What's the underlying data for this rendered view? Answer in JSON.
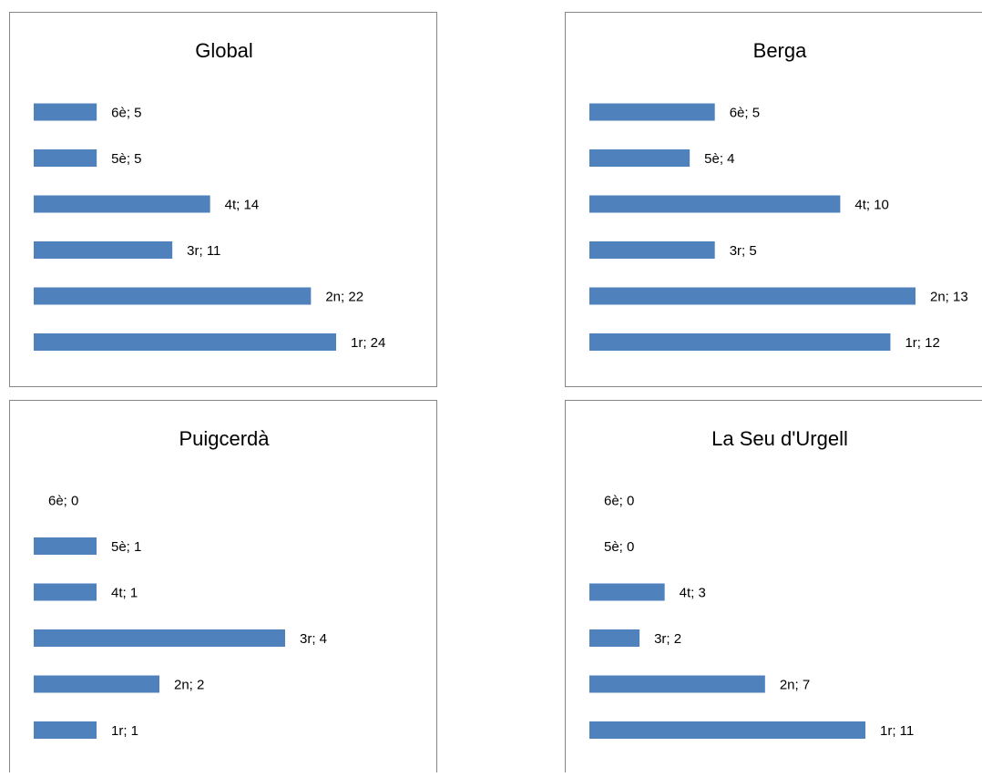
{
  "chart_data": [
    {
      "type": "bar",
      "title": "Global",
      "categories": [
        "6è",
        "5è",
        "4t",
        "3r",
        "2n",
        "1r"
      ],
      "values": [
        5,
        5,
        14,
        11,
        22,
        24
      ],
      "labels": [
        "6è; 5",
        "5è; 5",
        "4t; 14",
        "3r; 11",
        "2n; 22",
        "1r; 24"
      ],
      "orientation": "horizontal",
      "bar_color": "#4F81BD",
      "xlim": [
        0,
        24
      ]
    },
    {
      "type": "bar",
      "title": "Berga",
      "categories": [
        "6è",
        "5è",
        "4t",
        "3r",
        "2n",
        "1r"
      ],
      "values": [
        5,
        4,
        10,
        5,
        13,
        12
      ],
      "labels": [
        "6è; 5",
        "5è; 4",
        "4t; 10",
        "3r; 5",
        "2n; 13",
        "1r; 12"
      ],
      "orientation": "horizontal",
      "bar_color": "#4F81BD",
      "xlim": [
        0,
        13
      ]
    },
    {
      "type": "bar",
      "title": "Puigcerdà",
      "categories": [
        "6è",
        "5è",
        "4t",
        "3r",
        "2n",
        "1r"
      ],
      "values": [
        0,
        1,
        1,
        4,
        2,
        1
      ],
      "labels": [
        "6è; 0",
        "5è; 1",
        "4t; 1",
        "3r; 4",
        "2n; 2",
        "1r; 1"
      ],
      "orientation": "horizontal",
      "bar_color": "#4F81BD",
      "xlim": [
        0,
        4
      ]
    },
    {
      "type": "bar",
      "title": "La Seu d'Urgell",
      "categories": [
        "6è",
        "5è",
        "4t",
        "3r",
        "2n",
        "1r"
      ],
      "values": [
        0,
        0,
        3,
        2,
        7,
        11
      ],
      "labels": [
        "6è; 0",
        "5è; 0",
        "4t; 3",
        "3r; 2",
        "2n; 7",
        "1r; 11"
      ],
      "orientation": "horizontal",
      "bar_color": "#4F81BD",
      "xlim": [
        0,
        11
      ]
    }
  ]
}
